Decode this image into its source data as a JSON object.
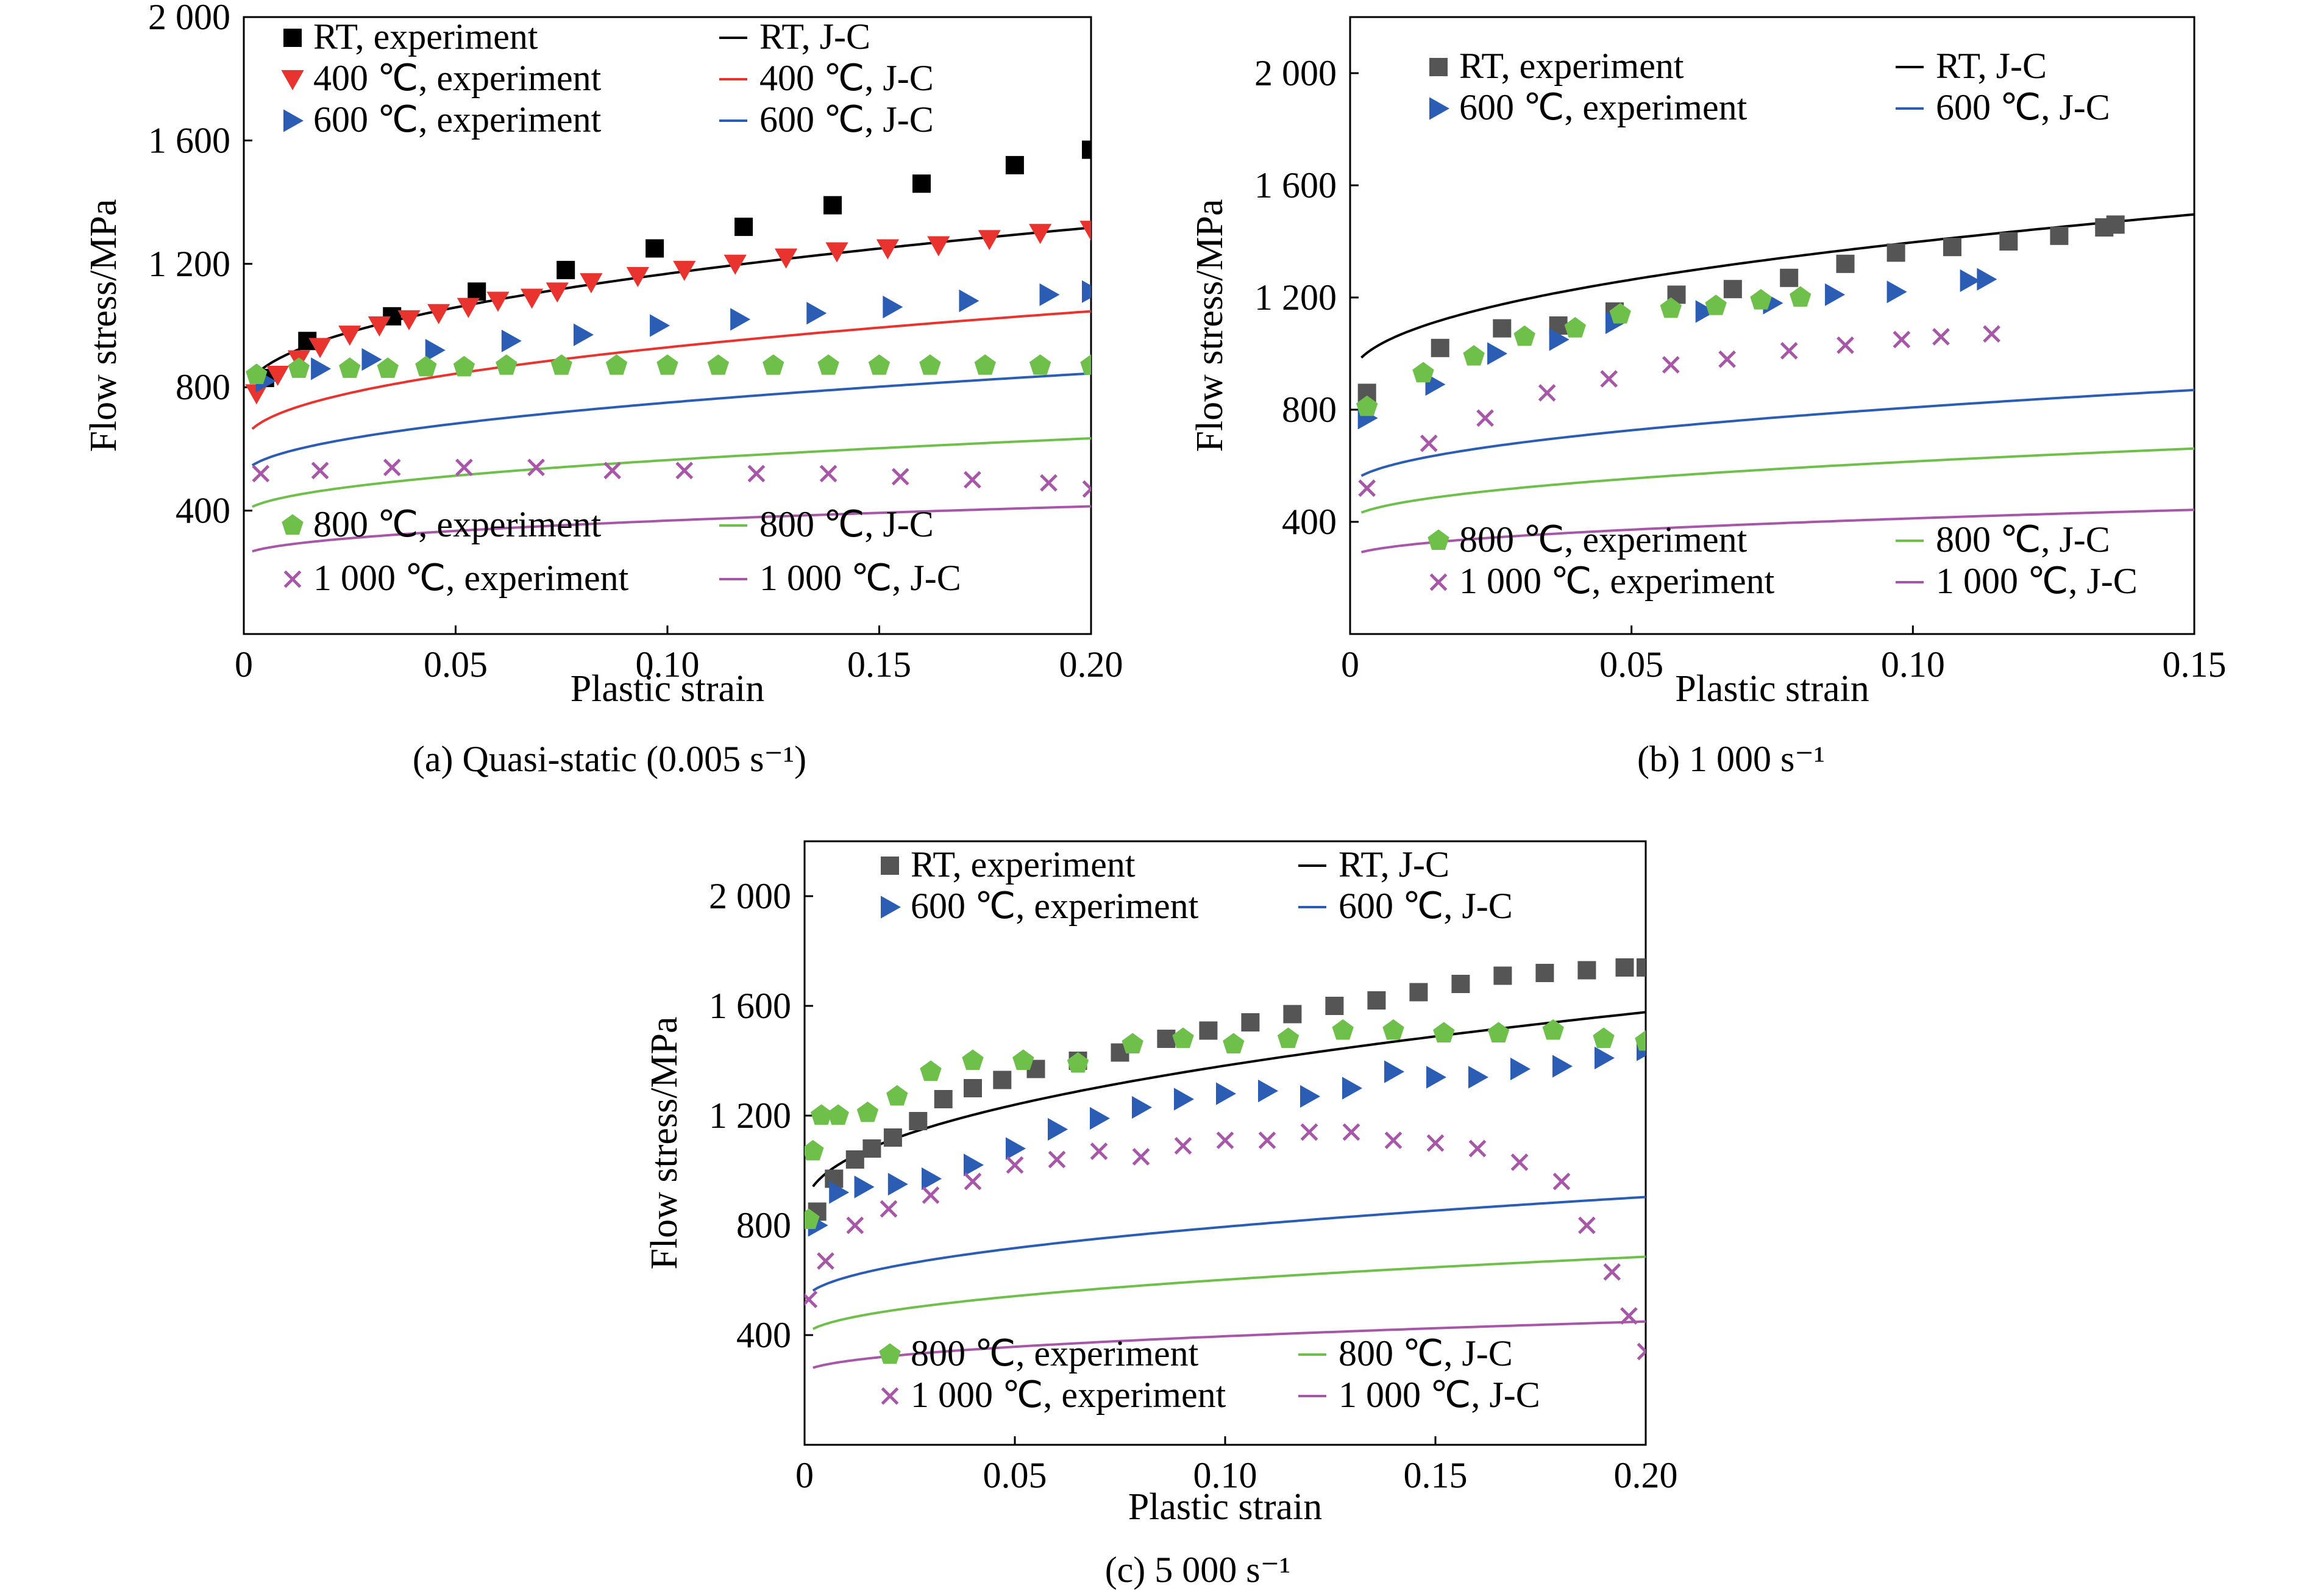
{
  "figure": {
    "panels": [
      {
        "caption": "(a) Quasi-static (0.005 s⁻¹)",
        "xlabel": "Plastic strain",
        "ylabel": "Flow stress/MPa",
        "x_ticks": [
          "0",
          "0.05",
          "0.10",
          "0.15",
          "0.20"
        ],
        "y_ticks": [
          "400",
          "800",
          "1 200",
          "1 600",
          "2 000"
        ]
      },
      {
        "caption": "(b) 1 000 s⁻¹",
        "xlabel": "Plastic strain",
        "ylabel": "Flow stress/MPa",
        "x_ticks": [
          "0",
          "0.05",
          "0.10",
          "0.15"
        ],
        "y_ticks": [
          "400",
          "800",
          "1 200",
          "1 600",
          "2 000"
        ]
      },
      {
        "caption": "(c) 5 000 s⁻¹",
        "xlabel": "Plastic strain",
        "ylabel": "Flow stress/MPa",
        "x_ticks": [
          "0",
          "0.05",
          "0.10",
          "0.15",
          "0.20"
        ],
        "y_ticks": [
          "400",
          "800",
          "1 200",
          "1 600",
          "2 000"
        ]
      }
    ]
  },
  "chart_data": [
    {
      "type": "scatter",
      "title": "(a) Quasi-static (0.005 s⁻¹)",
      "xlabel": "Plastic strain",
      "ylabel": "Flow stress/MPa",
      "xlim": [
        0,
        0.2
      ],
      "ylim": [
        0,
        2000
      ],
      "grid": false,
      "legend_placement": "top and bottom-left, inside plot",
      "series": [
        {
          "name": "RT, experiment",
          "kind": "marker",
          "marker": "square",
          "color": "#000000",
          "x": [
            0.005,
            0.015,
            0.035,
            0.055,
            0.076,
            0.097,
            0.118,
            0.139,
            0.16,
            0.182,
            0.2
          ],
          "y": [
            830,
            950,
            1030,
            1110,
            1180,
            1250,
            1320,
            1390,
            1460,
            1520,
            1570
          ]
        },
        {
          "name": "400 ℃, experiment",
          "kind": "marker",
          "marker": "triangle-down",
          "color": "#e8332e",
          "x": [
            0.003,
            0.008,
            0.013,
            0.018,
            0.025,
            0.032,
            0.039,
            0.046,
            0.053,
            0.06,
            0.068,
            0.074,
            0.082,
            0.093,
            0.104,
            0.116,
            0.128,
            0.14,
            0.152,
            0.164,
            0.176,
            0.188,
            0.2
          ],
          "y": [
            780,
            840,
            890,
            930,
            970,
            1000,
            1020,
            1040,
            1060,
            1080,
            1090,
            1110,
            1140,
            1160,
            1180,
            1200,
            1220,
            1240,
            1250,
            1260,
            1280,
            1300,
            1310
          ]
        },
        {
          "name": "600 ℃, experiment",
          "kind": "marker",
          "marker": "triangle-right",
          "color": "#2b5db5",
          "x": [
            0.005,
            0.018,
            0.03,
            0.045,
            0.063,
            0.08,
            0.098,
            0.117,
            0.135,
            0.153,
            0.171,
            0.19,
            0.2
          ],
          "y": [
            820,
            860,
            890,
            920,
            950,
            970,
            1000,
            1020,
            1040,
            1060,
            1080,
            1100,
            1110
          ]
        },
        {
          "name": "800 ℃, experiment",
          "kind": "marker",
          "marker": "pentagon",
          "color": "#6fc04b",
          "x": [
            0.003,
            0.013,
            0.025,
            0.034,
            0.043,
            0.052,
            0.062,
            0.075,
            0.088,
            0.1,
            0.112,
            0.125,
            0.138,
            0.15,
            0.162,
            0.175,
            0.188,
            0.2
          ],
          "y": [
            840,
            860,
            860,
            860,
            865,
            865,
            870,
            870,
            870,
            870,
            870,
            870,
            870,
            870,
            870,
            870,
            870,
            870
          ]
        },
        {
          "name": "1 000 ℃, experiment",
          "kind": "marker",
          "marker": "x",
          "color": "#a857a8",
          "x": [
            0.004,
            0.018,
            0.035,
            0.052,
            0.069,
            0.087,
            0.104,
            0.121,
            0.138,
            0.155,
            0.172,
            0.19,
            0.2
          ],
          "y": [
            520,
            530,
            540,
            540,
            540,
            530,
            530,
            520,
            520,
            510,
            500,
            490,
            470
          ]
        },
        {
          "name": "RT, J-C",
          "kind": "line",
          "color": "#000000",
          "jc": [
            760,
            1150,
            0.45
          ],
          "x_end": 0.2
        },
        {
          "name": "400 ℃, J-C",
          "kind": "line",
          "color": "#e8332e",
          "jc": [
            610,
            900,
            0.45
          ],
          "x_end": 0.2
        },
        {
          "name": "600 ℃, J-C",
          "kind": "line",
          "color": "#2b5db5",
          "jc": [
            510,
            725,
            0.48
          ],
          "x_end": 0.2
        },
        {
          "name": "800 ℃, J-C",
          "kind": "line",
          "color": "#6fc04b",
          "jc": [
            385,
            540,
            0.48
          ],
          "x_end": 0.2
        },
        {
          "name": "1 000 ℃, J-C",
          "kind": "line",
          "color": "#a857a8",
          "jc": [
            250,
            355,
            0.48
          ],
          "x_end": 0.2
        }
      ]
    },
    {
      "type": "scatter",
      "title": "(b) 1 000 s⁻¹",
      "xlabel": "Plastic strain",
      "ylabel": "Flow stress/MPa",
      "xlim": [
        0,
        0.15
      ],
      "ylim": [
        0,
        2200
      ],
      "grid": false,
      "legend_placement": "top and bottom, inside plot",
      "series": [
        {
          "name": "RT, experiment",
          "kind": "marker",
          "marker": "square",
          "color": "#555555",
          "x": [
            0.003,
            0.016,
            0.027,
            0.037,
            0.047,
            0.058,
            0.068,
            0.078,
            0.088,
            0.097,
            0.107,
            0.117,
            0.126,
            0.134,
            0.136
          ],
          "y": [
            860,
            1020,
            1090,
            1100,
            1150,
            1210,
            1230,
            1270,
            1320,
            1360,
            1380,
            1400,
            1420,
            1450,
            1460
          ]
        },
        {
          "name": "600 ℃, experiment",
          "kind": "marker",
          "marker": "triangle-right",
          "color": "#2b5db5",
          "x": [
            0.003,
            0.015,
            0.026,
            0.037,
            0.047,
            0.063,
            0.075,
            0.086,
            0.097,
            0.11,
            0.113
          ],
          "y": [
            770,
            890,
            1000,
            1050,
            1110,
            1150,
            1180,
            1210,
            1220,
            1260,
            1265
          ]
        },
        {
          "name": "800 ℃, experiment",
          "kind": "marker",
          "marker": "pentagon",
          "color": "#6fc04b",
          "x": [
            0.003,
            0.013,
            0.022,
            0.031,
            0.04,
            0.048,
            0.057,
            0.065,
            0.073,
            0.08
          ],
          "y": [
            810,
            930,
            990,
            1060,
            1090,
            1140,
            1160,
            1170,
            1190,
            1200
          ]
        },
        {
          "name": "1 000 ℃, experiment",
          "kind": "marker",
          "marker": "x",
          "color": "#a857a8",
          "x": [
            0.003,
            0.014,
            0.024,
            0.035,
            0.046,
            0.057,
            0.067,
            0.078,
            0.088,
            0.098,
            0.105,
            0.114
          ],
          "y": [
            520,
            680,
            770,
            860,
            910,
            960,
            980,
            1010,
            1030,
            1050,
            1060,
            1070
          ]
        },
        {
          "name": "RT, J-C",
          "kind": "line",
          "color": "#000000",
          "jc": [
            900,
            1400,
            0.45
          ],
          "x_end": 0.15
        },
        {
          "name": "600 ℃, J-C",
          "kind": "line",
          "color": "#2b5db5",
          "jc": [
            520,
            870,
            0.48
          ],
          "x_end": 0.15
        },
        {
          "name": "800 ℃, J-C",
          "kind": "line",
          "color": "#6fc04b",
          "jc": [
            400,
            650,
            0.48
          ],
          "x_end": 0.15
        },
        {
          "name": "1 000 ℃, J-C",
          "kind": "line",
          "color": "#a857a8",
          "jc": [
            270,
            430,
            0.48
          ],
          "x_end": 0.15
        }
      ]
    },
    {
      "type": "scatter",
      "title": "(c) 5 000 s⁻¹",
      "xlabel": "Plastic strain",
      "ylabel": "Flow stress/MPa",
      "xlim": [
        0,
        0.2
      ],
      "ylim": [
        0,
        2200
      ],
      "grid": false,
      "legend_placement": "top and bottom, inside plot",
      "series": [
        {
          "name": "RT, experiment",
          "kind": "marker",
          "marker": "square",
          "color": "#555555",
          "x": [
            0.003,
            0.007,
            0.012,
            0.016,
            0.021,
            0.027,
            0.033,
            0.04,
            0.047,
            0.055,
            0.065,
            0.075,
            0.086,
            0.096,
            0.106,
            0.116,
            0.126,
            0.136,
            0.146,
            0.156,
            0.166,
            0.176,
            0.186,
            0.195,
            0.2
          ],
          "y": [
            850,
            970,
            1040,
            1080,
            1120,
            1180,
            1260,
            1300,
            1330,
            1370,
            1400,
            1430,
            1480,
            1510,
            1540,
            1570,
            1600,
            1620,
            1650,
            1680,
            1710,
            1720,
            1730,
            1740,
            1740
          ]
        },
        {
          "name": "600 ℃, experiment",
          "kind": "marker",
          "marker": "triangle-right",
          "color": "#2b5db5",
          "x": [
            0.003,
            0.008,
            0.014,
            0.022,
            0.03,
            0.04,
            0.05,
            0.06,
            0.07,
            0.08,
            0.09,
            0.1,
            0.11,
            0.12,
            0.13,
            0.14,
            0.15,
            0.16,
            0.17,
            0.18,
            0.19,
            0.2
          ],
          "y": [
            800,
            920,
            940,
            950,
            970,
            1020,
            1080,
            1150,
            1190,
            1230,
            1260,
            1280,
            1290,
            1270,
            1300,
            1360,
            1340,
            1340,
            1370,
            1380,
            1410,
            1440
          ]
        },
        {
          "name": "800 ℃, experiment",
          "kind": "marker",
          "marker": "pentagon",
          "color": "#6fc04b",
          "x": [
            0.001,
            0.002,
            0.004,
            0.008,
            0.015,
            0.022,
            0.03,
            0.04,
            0.052,
            0.065,
            0.078,
            0.09,
            0.102,
            0.115,
            0.128,
            0.14,
            0.152,
            0.165,
            0.178,
            0.19,
            0.2
          ],
          "y": [
            820,
            1070,
            1200,
            1200,
            1210,
            1270,
            1360,
            1400,
            1400,
            1390,
            1460,
            1480,
            1460,
            1480,
            1510,
            1510,
            1500,
            1500,
            1510,
            1480,
            1470
          ]
        },
        {
          "name": "1 000 ℃, experiment",
          "kind": "marker",
          "marker": "x",
          "color": "#a857a8",
          "x": [
            0.001,
            0.005,
            0.012,
            0.02,
            0.03,
            0.04,
            0.05,
            0.06,
            0.07,
            0.08,
            0.09,
            0.1,
            0.11,
            0.12,
            0.13,
            0.14,
            0.15,
            0.16,
            0.17,
            0.18,
            0.186,
            0.192,
            0.196,
            0.2
          ],
          "y": [
            530,
            670,
            800,
            860,
            910,
            960,
            1020,
            1040,
            1070,
            1050,
            1090,
            1110,
            1110,
            1140,
            1140,
            1110,
            1100,
            1080,
            1030,
            960,
            800,
            630,
            470,
            340
          ]
        },
        {
          "name": "RT, J-C",
          "kind": "line",
          "color": "#000000",
          "jc": [
            850,
            1500,
            0.45
          ],
          "x_end": 0.2
        },
        {
          "name": "600 ℃, J-C",
          "kind": "line",
          "color": "#2b5db5",
          "jc": [
            520,
            830,
            0.48
          ],
          "x_end": 0.2
        },
        {
          "name": "800 ℃, J-C",
          "kind": "line",
          "color": "#6fc04b",
          "jc": [
            390,
            640,
            0.48
          ],
          "x_end": 0.2
        },
        {
          "name": "1 000 ℃, J-C",
          "kind": "line",
          "color": "#a857a8",
          "jc": [
            260,
            410,
            0.48
          ],
          "x_end": 0.2
        }
      ]
    }
  ]
}
